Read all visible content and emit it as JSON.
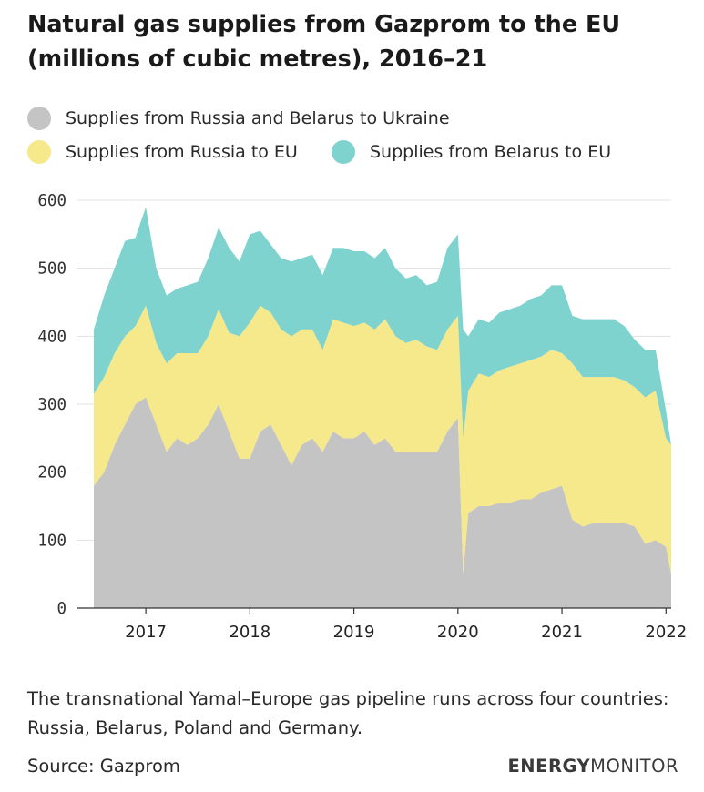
{
  "title": "Natural gas supplies from Gazprom to the EU (millions of cubic metres), 2016–21",
  "legend": [
    {
      "label": "Supplies from Russia and Belarus to Ukraine",
      "color": "#c4c4c4"
    },
    {
      "label": "Supplies from Russia to EU",
      "color": "#f5e98c"
    },
    {
      "label": "Supplies from Belarus to EU",
      "color": "#7fd3cf"
    }
  ],
  "note": "The transnational Yamal–Europe gas pipeline runs across four countries: Russia, Belarus, Poland and Germany.",
  "source": "Source: Gazprom",
  "brand": {
    "bold": "ENERGY",
    "light": "MONITOR"
  },
  "chart_data": {
    "type": "area",
    "stacked": true,
    "x_range": [
      2016.5,
      2022.05
    ],
    "ylim": [
      0,
      600
    ],
    "yticks": [
      0,
      100,
      200,
      300,
      400,
      500,
      600
    ],
    "xticks": [
      {
        "value": 2017,
        "label": "2017"
      },
      {
        "value": 2018,
        "label": "2018"
      },
      {
        "value": 2019,
        "label": "2019"
      },
      {
        "value": 2020,
        "label": "2020"
      },
      {
        "value": 2021,
        "label": "2021"
      },
      {
        "value": 2022,
        "label": "2022"
      }
    ],
    "grid": true,
    "legend_position": "top",
    "x": [
      2016.5,
      2016.6,
      2016.7,
      2016.8,
      2016.9,
      2017.0,
      2017.1,
      2017.2,
      2017.3,
      2017.4,
      2017.5,
      2017.6,
      2017.7,
      2017.8,
      2017.9,
      2018.0,
      2018.1,
      2018.2,
      2018.3,
      2018.4,
      2018.5,
      2018.6,
      2018.7,
      2018.8,
      2018.9,
      2019.0,
      2019.1,
      2019.2,
      2019.3,
      2019.4,
      2019.5,
      2019.6,
      2019.7,
      2019.8,
      2019.9,
      2020.0,
      2020.05,
      2020.1,
      2020.2,
      2020.3,
      2020.4,
      2020.5,
      2020.6,
      2020.7,
      2020.8,
      2020.9,
      2021.0,
      2021.1,
      2021.2,
      2021.3,
      2021.4,
      2021.5,
      2021.6,
      2021.7,
      2021.8,
      2021.9,
      2022.0,
      2022.05
    ],
    "series": [
      {
        "name": "Supplies from Russia and Belarus to Ukraine",
        "color": "#c4c4c4",
        "values": [
          180,
          200,
          240,
          270,
          300,
          310,
          270,
          230,
          250,
          240,
          250,
          270,
          300,
          260,
          220,
          220,
          260,
          270,
          240,
          210,
          240,
          250,
          230,
          260,
          250,
          250,
          260,
          240,
          250,
          230,
          230,
          230,
          230,
          230,
          260,
          280,
          50,
          140,
          150,
          150,
          155,
          155,
          160,
          160,
          170,
          175,
          180,
          130,
          120,
          125,
          125,
          125,
          125,
          120,
          95,
          100,
          90,
          50
        ]
      },
      {
        "name": "Supplies from Russia to EU",
        "color": "#f5e98c",
        "values": [
          135,
          140,
          135,
          130,
          115,
          135,
          120,
          130,
          125,
          135,
          125,
          130,
          140,
          145,
          180,
          200,
          185,
          165,
          170,
          190,
          170,
          160,
          150,
          165,
          170,
          165,
          160,
          170,
          175,
          170,
          160,
          165,
          155,
          150,
          150,
          150,
          200,
          180,
          195,
          190,
          195,
          200,
          200,
          205,
          200,
          205,
          195,
          230,
          220,
          215,
          215,
          215,
          210,
          205,
          215,
          220,
          160,
          190
        ]
      },
      {
        "name": "Supplies from Belarus to EU",
        "color": "#7fd3cf",
        "values": [
          95,
          120,
          125,
          140,
          130,
          145,
          110,
          100,
          95,
          100,
          105,
          115,
          120,
          125,
          110,
          130,
          110,
          100,
          105,
          110,
          105,
          110,
          110,
          105,
          110,
          110,
          105,
          105,
          105,
          100,
          95,
          95,
          90,
          100,
          120,
          120,
          160,
          80,
          80,
          80,
          85,
          85,
          85,
          90,
          90,
          95,
          100,
          70,
          85,
          85,
          85,
          85,
          80,
          70,
          70,
          60,
          40,
          0
        ]
      }
    ]
  }
}
